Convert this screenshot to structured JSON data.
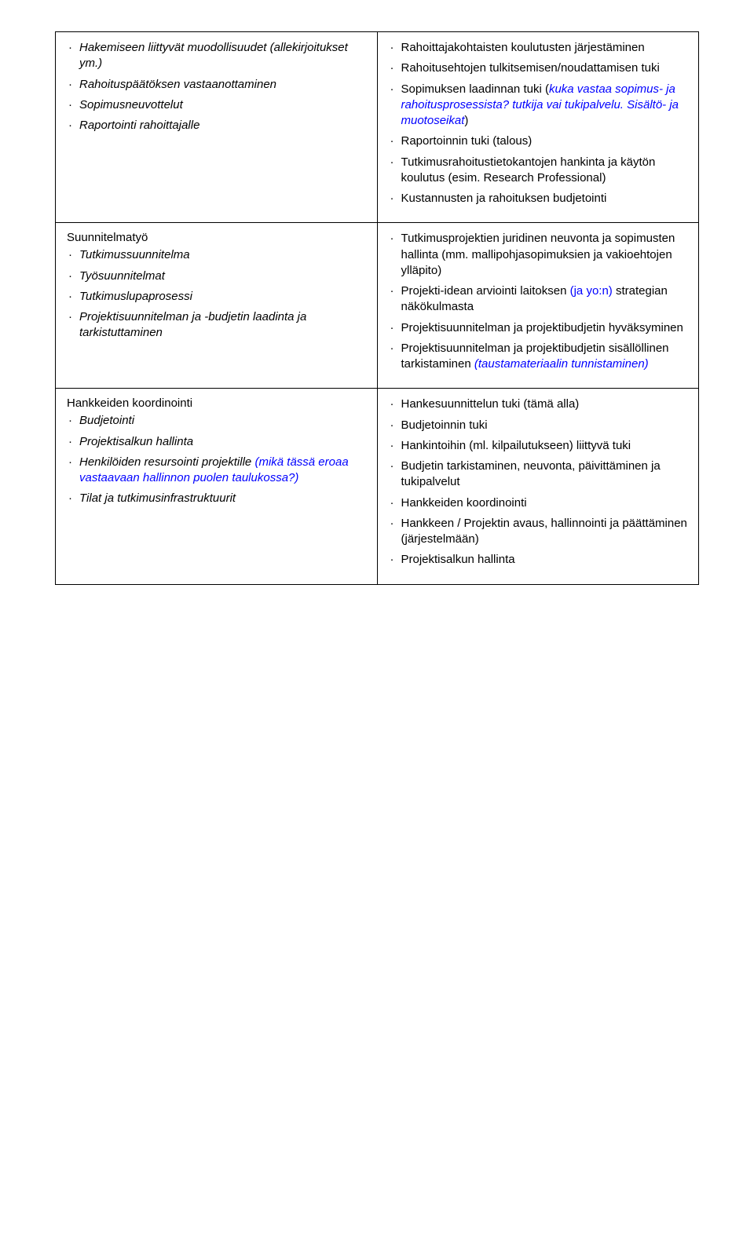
{
  "rows": [
    {
      "left": {
        "title": null,
        "items": [
          {
            "segments": [
              {
                "text": "Hakemiseen liittyvät muodollisuudet (allekirjoitukset ym.)",
                "italic": true
              }
            ]
          },
          {
            "segments": [
              {
                "text": "Rahoituspäätöksen vastaanottaminen",
                "italic": true
              }
            ]
          },
          {
            "segments": [
              {
                "text": "Sopimusneuvottelut",
                "italic": true
              }
            ]
          },
          {
            "segments": [
              {
                "text": "Raportointi rahoittajalle",
                "italic": true
              }
            ]
          }
        ]
      },
      "right": {
        "title": null,
        "items": [
          {
            "segments": [
              {
                "text": "Rahoittajakohtaisten koulutusten järjestäminen"
              }
            ]
          },
          {
            "segments": [
              {
                "text": "Rahoitusehtojen tulkitsemisen/noudattamisen tuki"
              }
            ]
          },
          {
            "segments": [
              {
                "text": "Sopimuksen laadinnan tuki ("
              },
              {
                "text": "kuka vastaa sopimus- ja rahoitusprosessista? tutkija vai tukipalvelu. Sisältö- ja muotoseikat",
                "italic": true,
                "blue": true
              },
              {
                "text": ")"
              }
            ]
          },
          {
            "segments": [
              {
                "text": "Raportoinnin tuki (talous)"
              }
            ]
          },
          {
            "segments": [
              {
                "text": "Tutkimusrahoitustietokantojen hankinta ja käytön koulutus (esim. Research Professional)"
              }
            ]
          },
          {
            "segments": [
              {
                "text": "Kustannusten ja rahoituksen budjetointi"
              }
            ]
          }
        ]
      }
    },
    {
      "left": {
        "title": "Suunnitelmatyö",
        "items": [
          {
            "segments": [
              {
                "text": "Tutkimussuunnitelma",
                "italic": true
              }
            ]
          },
          {
            "segments": [
              {
                "text": "Työsuunnitelmat",
                "italic": true
              }
            ]
          },
          {
            "segments": [
              {
                "text": "Tutkimuslupaprosessi",
                "italic": true
              }
            ]
          },
          {
            "segments": [
              {
                "text": "Projektisuunnitelman ja -budjetin laadinta ja tarkistuttaminen",
                "italic": true
              }
            ]
          }
        ]
      },
      "right": {
        "title": null,
        "items": [
          {
            "segments": [
              {
                "text": "Tutkimusprojektien juridinen neuvonta ja sopimusten hallinta (mm. mallipohjasopimuksien ja vakioehtojen ylläpito)"
              }
            ]
          },
          {
            "segments": [
              {
                "text": "Projekti-idean arviointi laitoksen "
              },
              {
                "text": "(ja yo:n)",
                "blue": true
              },
              {
                "text": " strategian näkökulmasta"
              }
            ]
          },
          {
            "segments": [
              {
                "text": "Projektisuunnitelman ja projektibudjetin hyväksyminen"
              }
            ]
          },
          {
            "segments": [
              {
                "text": "Projektisuunnitelman ja projektibudjetin sisällöllinen tarkistaminen "
              },
              {
                "text": "(taustamateriaalin tunnistaminen)",
                "italic": true,
                "blue": true
              }
            ]
          }
        ]
      }
    },
    {
      "left": {
        "title": "Hankkeiden koordinointi",
        "items": [
          {
            "segments": [
              {
                "text": "Budjetointi",
                "italic": true
              }
            ]
          },
          {
            "segments": [
              {
                "text": "Projektisalkun hallinta",
                "italic": true
              }
            ]
          },
          {
            "segments": [
              {
                "text": "Henkilöiden resursointi projektille ",
                "italic": true
              },
              {
                "text": "(mikä tässä eroaa vastaavaan hallinnon puolen taulukossa?)",
                "italic": true,
                "blue": true
              }
            ]
          },
          {
            "segments": [
              {
                "text": "Tilat ja tutkimusinfrastruktuurit",
                "italic": true
              }
            ]
          }
        ]
      },
      "right": {
        "title": null,
        "items": [
          {
            "segments": [
              {
                "text": "Hankesuunnittelun tuki (tämä alla)"
              }
            ]
          },
          {
            "segments": [
              {
                "text": "Budjetoinnin tuki"
              }
            ]
          },
          {
            "segments": [
              {
                "text": "Hankintoihin (ml. kilpailutukseen) liittyvä tuki"
              }
            ]
          },
          {
            "segments": [
              {
                "text": "Budjetin tarkistaminen, neuvonta, päivittäminen ja tukipalvelut"
              }
            ]
          },
          {
            "segments": [
              {
                "text": "Hankkeiden koordinointi"
              }
            ]
          },
          {
            "segments": [
              {
                "text": "Hankkeen / Projektin avaus, hallinnointi ja päättäminen (järjestelmään)"
              }
            ]
          },
          {
            "segments": [
              {
                "text": "Projektisalkun hallinta"
              }
            ]
          }
        ]
      }
    }
  ]
}
